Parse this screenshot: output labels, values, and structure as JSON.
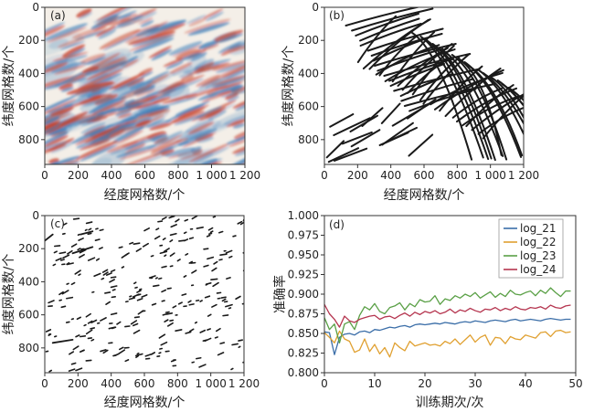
{
  "chart_data": [
    {
      "panel": "(a)",
      "type": "heatmap",
      "xlabel": "经度网格数/个",
      "ylabel": "纬度网格数/个",
      "xlim": [
        0,
        1200
      ],
      "ylim": [
        0,
        950
      ],
      "xticks": [
        "0",
        "200",
        "400",
        "600",
        "800",
        "1 000",
        "1 200"
      ],
      "yticks": [
        "0",
        "200",
        "400",
        "600",
        "800"
      ],
      "colors": {
        "positive": "#c8442c",
        "negative": "#3a7cb8",
        "neutral": "#f4efe8"
      }
    },
    {
      "panel": "(b)",
      "type": "line",
      "xlabel": "经度网格数/个",
      "ylabel": "纬度网格数/个",
      "xlim": [
        0,
        1200
      ],
      "ylim": [
        0,
        950
      ],
      "xticks": [
        "0",
        "200",
        "400",
        "600",
        "800",
        "1 000",
        "1 200"
      ],
      "yticks": [
        "0",
        "200",
        "400",
        "600",
        "800"
      ],
      "line_color": "#1a1a1a"
    },
    {
      "panel": "(c)",
      "type": "scatter",
      "xlabel": "经度网格数/个",
      "ylabel": "纬度网格数/个",
      "xlim": [
        0,
        1200
      ],
      "ylim": [
        0,
        950
      ],
      "xticks": [
        "0",
        "200",
        "400",
        "600",
        "800",
        "1 000",
        "1 200"
      ],
      "yticks": [
        "0",
        "200",
        "400",
        "600",
        "800"
      ],
      "mark_color": "#1a1a1a"
    },
    {
      "panel": "(d)",
      "type": "line",
      "xlabel": "训练期次/次",
      "ylabel": "准确率",
      "xlim": [
        0,
        50
      ],
      "ylim": [
        0.8,
        1.0
      ],
      "xticks": [
        "0",
        "10",
        "20",
        "30",
        "40",
        "50"
      ],
      "yticks": [
        "0.800",
        "0.825",
        "0.850",
        "0.875",
        "0.900",
        "0.925",
        "0.950",
        "0.975",
        "1.000"
      ],
      "legend_position": "top-right",
      "x": [
        0,
        1,
        2,
        3,
        4,
        5,
        6,
        7,
        8,
        9,
        10,
        11,
        12,
        13,
        14,
        15,
        16,
        17,
        18,
        19,
        20,
        21,
        22,
        23,
        24,
        25,
        26,
        27,
        28,
        29,
        30,
        31,
        32,
        33,
        34,
        35,
        36,
        37,
        38,
        39,
        40,
        41,
        42,
        43,
        44,
        45,
        46,
        47,
        48,
        49
      ],
      "series": [
        {
          "name": "log_21",
          "color": "#3b6ea8",
          "values": [
            0.852,
            0.851,
            0.823,
            0.845,
            0.849,
            0.85,
            0.848,
            0.852,
            0.853,
            0.851,
            0.855,
            0.854,
            0.856,
            0.858,
            0.857,
            0.859,
            0.86,
            0.858,
            0.861,
            0.862,
            0.861,
            0.862,
            0.863,
            0.862,
            0.864,
            0.863,
            0.862,
            0.864,
            0.865,
            0.864,
            0.866,
            0.865,
            0.864,
            0.866,
            0.867,
            0.866,
            0.865,
            0.867,
            0.868,
            0.866,
            0.867,
            0.868,
            0.867,
            0.866,
            0.868,
            0.869,
            0.868,
            0.867,
            0.868,
            0.868
          ]
        },
        {
          "name": "log_22",
          "color": "#e0a030",
          "values": [
            0.851,
            0.845,
            0.838,
            0.853,
            0.843,
            0.84,
            0.826,
            0.829,
            0.843,
            0.827,
            0.836,
            0.824,
            0.832,
            0.82,
            0.838,
            0.832,
            0.828,
            0.84,
            0.834,
            0.836,
            0.838,
            0.835,
            0.836,
            0.834,
            0.84,
            0.837,
            0.843,
            0.836,
            0.842,
            0.848,
            0.839,
            0.845,
            0.848,
            0.835,
            0.845,
            0.844,
            0.837,
            0.846,
            0.843,
            0.842,
            0.848,
            0.846,
            0.844,
            0.851,
            0.852,
            0.846,
            0.853,
            0.854,
            0.851,
            0.852
          ]
        },
        {
          "name": "log_23",
          "color": "#5aa046",
          "values": [
            0.87,
            0.855,
            0.862,
            0.838,
            0.862,
            0.865,
            0.855,
            0.873,
            0.884,
            0.88,
            0.888,
            0.878,
            0.875,
            0.883,
            0.885,
            0.889,
            0.88,
            0.888,
            0.884,
            0.893,
            0.89,
            0.891,
            0.898,
            0.887,
            0.894,
            0.892,
            0.898,
            0.895,
            0.9,
            0.897,
            0.902,
            0.895,
            0.899,
            0.903,
            0.896,
            0.901,
            0.897,
            0.905,
            0.9,
            0.899,
            0.902,
            0.904,
            0.898,
            0.905,
            0.901,
            0.908,
            0.902,
            0.897,
            0.904,
            0.904
          ]
        },
        {
          "name": "log_24",
          "color": "#b5354f",
          "values": [
            0.887,
            0.875,
            0.868,
            0.858,
            0.872,
            0.866,
            0.864,
            0.868,
            0.87,
            0.872,
            0.873,
            0.868,
            0.871,
            0.872,
            0.869,
            0.873,
            0.876,
            0.872,
            0.877,
            0.874,
            0.878,
            0.876,
            0.879,
            0.875,
            0.877,
            0.881,
            0.876,
            0.88,
            0.878,
            0.882,
            0.879,
            0.877,
            0.881,
            0.88,
            0.883,
            0.879,
            0.882,
            0.88,
            0.884,
            0.881,
            0.88,
            0.883,
            0.882,
            0.884,
            0.881,
            0.886,
            0.883,
            0.882,
            0.885,
            0.886
          ]
        }
      ]
    }
  ]
}
